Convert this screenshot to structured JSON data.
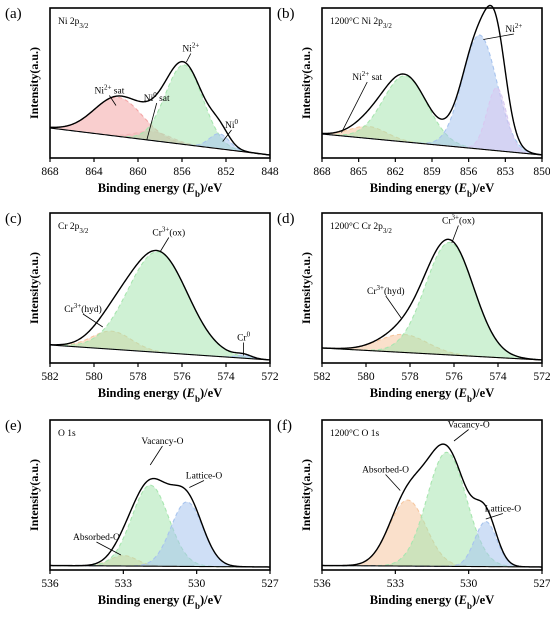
{
  "chart_data": [
    {
      "type": "line",
      "panel_label": "(a)",
      "corner_label_text": "Ni 2p",
      "corner_label_sub": "3/2",
      "corner_label_suffix": "",
      "xlabel": "Binding energy (E",
      "xlabel_sub": "b",
      "xlabel_end": ")/eV",
      "ylabel": "Intensity(a.u.)",
      "xlim": [
        868,
        848
      ],
      "x_ticks": [
        868,
        864,
        860,
        856,
        852,
        848
      ],
      "baseline": {
        "left": 0.2,
        "right": 0.02
      },
      "components": [
        {
          "name": "Ni2+ sat",
          "center": 861.8,
          "width": 2.2,
          "height": 0.26,
          "color": "#f4a6a6"
        },
        {
          "name": "Ni0 sat",
          "center": 858.6,
          "width": 1.6,
          "height": 0.06,
          "color": "#f2b8b8"
        },
        {
          "name": "Ni2+",
          "center": 855.8,
          "width": 1.7,
          "height": 0.53,
          "color": "#a8e6b0"
        },
        {
          "name": "Ni0",
          "center": 852.6,
          "width": 0.9,
          "height": 0.1,
          "color": "#a8c4ee"
        }
      ],
      "annotations": [
        {
          "text": "Ni",
          "sup": "2+",
          "after": " sat",
          "at": 862.6,
          "y": 0.43,
          "line_to": [
            862.0,
            0.35
          ]
        },
        {
          "text": "Ni",
          "sup": "0",
          "after": " sat",
          "at": 858.3,
          "y": 0.38,
          "line_to": [
            859.2,
            0.12
          ]
        },
        {
          "text": "Ni",
          "sup": "2+",
          "after": "",
          "at": 855.2,
          "y": 0.71,
          "line_to": [
            855.6,
            0.64
          ]
        },
        {
          "text": "Ni",
          "sup": "0",
          "after": "",
          "at": 851.5,
          "y": 0.2,
          "line_to": [
            852.3,
            0.11
          ]
        }
      ]
    },
    {
      "type": "line",
      "panel_label": "(b)",
      "corner_label_text": "1200°C Ni 2p",
      "corner_label_sub": "3/2",
      "corner_label_suffix": "",
      "xlabel": "Binding energy (E",
      "xlabel_sub": "b",
      "xlabel_end": ")/eV",
      "ylabel": "Intensity(a.u.)",
      "xlim": [
        868,
        850
      ],
      "x_ticks": [
        868,
        865,
        862,
        859,
        856,
        853,
        850
      ],
      "baseline": {
        "left": 0.16,
        "right": 0.02
      },
      "components": [
        {
          "name": "Ni2+ sat",
          "center": 864.2,
          "width": 1.5,
          "height": 0.08,
          "color": "#f6c7a0"
        },
        {
          "name": "Ni2+ sat",
          "center": 861.2,
          "width": 1.8,
          "height": 0.44,
          "color": "#a8e6b0"
        },
        {
          "name": "Ni2+",
          "center": 855.1,
          "width": 1.4,
          "height": 0.76,
          "color": "#a8c4ee"
        },
        {
          "name": "Ni2+",
          "center": 853.7,
          "width": 0.8,
          "height": 0.42,
          "color": "#d8c8f0"
        }
      ],
      "annotations": [
        {
          "text": "Ni",
          "sup": "2+",
          "after": " sat",
          "at": 864.3,
          "y": 0.52,
          "line_to": [
            866.4,
            0.17
          ]
        },
        {
          "text": "Ni",
          "sup": "2+",
          "after": "",
          "at": 852.3,
          "y": 0.84,
          "line_to": [
            854.8,
            0.79
          ]
        }
      ]
    },
    {
      "type": "line",
      "panel_label": "(c)",
      "corner_label_text": "Cr 2p",
      "corner_label_sub": "3/2",
      "corner_label_suffix": "",
      "xlabel": "Binding energy (E",
      "xlabel_sub": "b",
      "xlabel_end": ")/eV",
      "ylabel": "Intensity(a.u.)",
      "xlim": [
        582,
        572
      ],
      "x_ticks": [
        582,
        580,
        578,
        576,
        574,
        572
      ],
      "baseline": {
        "left": 0.12,
        "right": 0.02
      },
      "components": [
        {
          "name": "Cr3+(hyd)",
          "center": 579.2,
          "width": 0.9,
          "height": 0.12,
          "color": "#f6c7a0"
        },
        {
          "name": "Cr3+(ox)",
          "center": 577.1,
          "width": 1.35,
          "height": 0.67,
          "color": "#a8e6b0"
        },
        {
          "name": "Cr0",
          "center": 573.2,
          "width": 0.35,
          "height": 0.02,
          "color": "#a8c4ee"
        }
      ],
      "annotations": [
        {
          "text": "Cr",
          "sup": "3+",
          "after": "(ox)",
          "at": 576.6,
          "y": 0.85,
          "line_to": [
            577.0,
            0.74
          ]
        },
        {
          "text": "Cr",
          "sup": "3+",
          "after": "(hyd)",
          "at": 580.5,
          "y": 0.34,
          "line_to": [
            579.6,
            0.24
          ]
        },
        {
          "text": "Cr",
          "sup": "0",
          "after": "",
          "at": 573.2,
          "y": 0.15,
          "line_to": [
            573.2,
            0.05
          ]
        }
      ]
    },
    {
      "type": "line",
      "panel_label": "(d)",
      "corner_label_text": "1200°C Cr 2p",
      "corner_label_sub": "3/2",
      "corner_label_suffix": "",
      "xlabel": "Binding energy (E",
      "xlabel_sub": "b",
      "xlabel_end": ")/eV",
      "ylabel": "Intensity(a.u.)",
      "xlim": [
        582,
        572
      ],
      "x_ticks": [
        582,
        580,
        578,
        576,
        574,
        572
      ],
      "baseline": {
        "left": 0.1,
        "right": 0.02
      },
      "components": [
        {
          "name": "Cr3+(hyd)",
          "center": 578.3,
          "width": 1.1,
          "height": 0.12,
          "color": "#f6c7a0"
        },
        {
          "name": "Cr3+(ox)",
          "center": 576.2,
          "width": 1.1,
          "height": 0.75,
          "color": "#a8e6b0"
        }
      ],
      "annotations": [
        {
          "text": "Cr",
          "sup": "3+",
          "after": "(ox)",
          "at": 575.8,
          "y": 0.93,
          "line_to": [
            576.1,
            0.8
          ]
        },
        {
          "text": "Cr",
          "sup": "3+",
          "after": "(hyd)",
          "at": 579.1,
          "y": 0.46,
          "line_to": [
            578.4,
            0.3
          ]
        }
      ]
    },
    {
      "type": "line",
      "panel_label": "(e)",
      "corner_label_text": "O 1s",
      "corner_label_sub": "",
      "corner_label_suffix": "",
      "xlabel": "Binding energy (E",
      "xlabel_sub": "b",
      "xlabel_end": ")/eV",
      "ylabel": "Intensity(a.u.)",
      "xlim": [
        536,
        527
      ],
      "x_ticks": [
        536,
        533,
        530,
        527
      ],
      "baseline": {
        "left": 0.03,
        "right": 0.02
      },
      "components": [
        {
          "name": "Absorbed-O",
          "center": 533.0,
          "width": 0.55,
          "height": 0.07,
          "color": "#f6c7a0"
        },
        {
          "name": "Vacancy-O",
          "center": 531.9,
          "width": 0.75,
          "height": 0.54,
          "color": "#a8e6b0"
        },
        {
          "name": "Lattice-O",
          "center": 530.4,
          "width": 0.65,
          "height": 0.43,
          "color": "#a8c4ee"
        }
      ],
      "annotations": [
        {
          "text": "Vacancy-O",
          "sup": "",
          "after": "",
          "at": 531.4,
          "y": 0.84,
          "line_to": [
            531.9,
            0.7
          ]
        },
        {
          "text": "Lattice-O",
          "sup": "",
          "after": "",
          "at": 529.7,
          "y": 0.61,
          "line_to": [
            530.3,
            0.55
          ]
        },
        {
          "text": "Absorbed-O",
          "sup": "",
          "after": "",
          "at": 534.1,
          "y": 0.2,
          "line_to": [
            533.1,
            0.1
          ]
        }
      ]
    },
    {
      "type": "line",
      "panel_label": "(f)",
      "corner_label_text": "1200°C O 1s",
      "corner_label_sub": "",
      "corner_label_suffix": "",
      "xlabel": "Binding energy (E",
      "xlabel_sub": "b",
      "xlabel_end": ")/eV",
      "ylabel": "Intensity(a.u.)",
      "xlim": [
        536,
        527
      ],
      "x_ticks": [
        536,
        533,
        530,
        527
      ],
      "baseline": {
        "left": 0.03,
        "right": 0.02
      },
      "components": [
        {
          "name": "Absorbed-O",
          "center": 532.5,
          "width": 0.75,
          "height": 0.44,
          "color": "#f6c7a0"
        },
        {
          "name": "Vacancy-O",
          "center": 530.9,
          "width": 0.8,
          "height": 0.76,
          "color": "#a8e6b0"
        },
        {
          "name": "Lattice-O",
          "center": 529.3,
          "width": 0.45,
          "height": 0.3,
          "color": "#a8c4ee"
        }
      ],
      "annotations": [
        {
          "text": "Vacancy-O",
          "sup": "",
          "after": "",
          "at": 530.0,
          "y": 0.95,
          "line_to": [
            530.6,
            0.86
          ]
        },
        {
          "text": "Absorbed-O",
          "sup": "",
          "after": "",
          "at": 533.4,
          "y": 0.65,
          "line_to": [
            532.8,
            0.53
          ]
        },
        {
          "text": "Lattice-O",
          "sup": "",
          "after": "",
          "at": 528.6,
          "y": 0.39,
          "line_to": [
            529.3,
            0.34
          ]
        }
      ]
    }
  ]
}
